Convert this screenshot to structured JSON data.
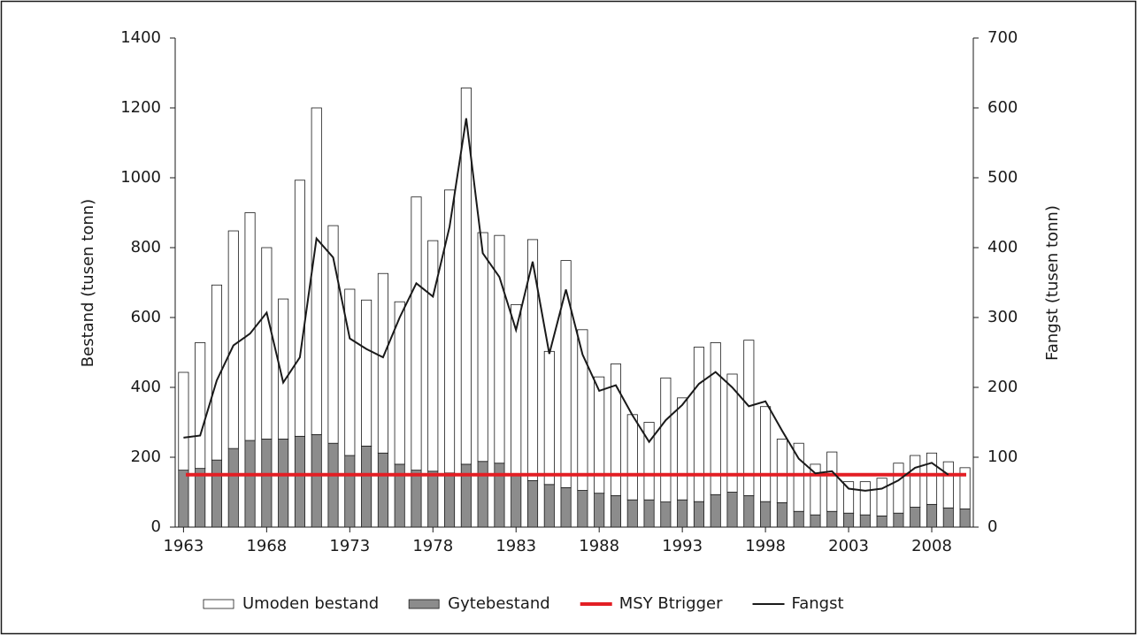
{
  "chart_data": {
    "type": "bar",
    "stacked": true,
    "ylabel": "Bestand (tusen tonn)",
    "y2label": "Fangst (tusen tonn)",
    "categories": [
      "1963",
      null,
      null,
      null,
      null,
      "1968",
      null,
      null,
      null,
      null,
      "1973",
      null,
      null,
      null,
      null,
      "1978",
      null,
      null,
      null,
      null,
      "1983",
      null,
      null,
      null,
      null,
      "1988",
      null,
      null,
      null,
      null,
      "1993",
      null,
      null,
      null,
      null,
      "1998",
      null,
      null,
      null,
      null,
      "2003",
      null,
      null,
      null,
      null,
      "2008",
      null,
      null
    ],
    "ylim": [
      0,
      1400
    ],
    "yticks": [
      0,
      200,
      400,
      600,
      800,
      1000,
      1200,
      1400
    ],
    "y2lim": [
      0,
      700
    ],
    "y2ticks": [
      0,
      100,
      200,
      300,
      400,
      500,
      600,
      700
    ],
    "series": [
      {
        "name": "Umoden bestand",
        "color": "#ffffff",
        "stack_above": 1,
        "values": [
          280,
          360,
          501,
          623,
          652,
          548,
          401,
          733,
          935,
          623,
          476,
          418,
          514,
          465,
          782,
          660,
          810,
          1077,
          655,
          652,
          489,
          690,
          381,
          650,
          460,
          333,
          377,
          244,
          222,
          355,
          292,
          442,
          435,
          338,
          445,
          272,
          182,
          195,
          145,
          170,
          90,
          95,
          108,
          143,
          148,
          147,
          132,
          118
        ]
      },
      {
        "name": "Gytebestand",
        "color": "#8c8c8c",
        "values": [
          163,
          168,
          192,
          225,
          248,
          252,
          252,
          260,
          265,
          240,
          205,
          232,
          212,
          180,
          163,
          160,
          155,
          180,
          188,
          183,
          148,
          133,
          122,
          113,
          105,
          97,
          90,
          78,
          78,
          72,
          78,
          73,
          93,
          100,
          90,
          73,
          70,
          45,
          35,
          45,
          40,
          35,
          32,
          40,
          57,
          65,
          55,
          52
        ]
      },
      {
        "name": "MSY Btrigger",
        "color": "#e31e24",
        "type": "hline",
        "value": 150
      },
      {
        "name": "Fangst",
        "color": "#1a1a1a",
        "type": "line",
        "axis": "y2",
        "values": [
          128,
          131,
          210,
          260,
          277,
          307,
          207,
          243,
          413,
          386,
          270,
          255,
          243,
          300,
          349,
          330,
          430,
          585,
          392,
          358,
          282,
          380,
          248,
          340,
          247,
          195,
          203,
          160,
          122,
          153,
          175,
          205,
          222,
          200,
          173,
          180,
          138,
          98,
          77,
          80,
          55,
          52,
          55,
          67,
          85,
          92,
          75,
          null
        ]
      }
    ]
  }
}
